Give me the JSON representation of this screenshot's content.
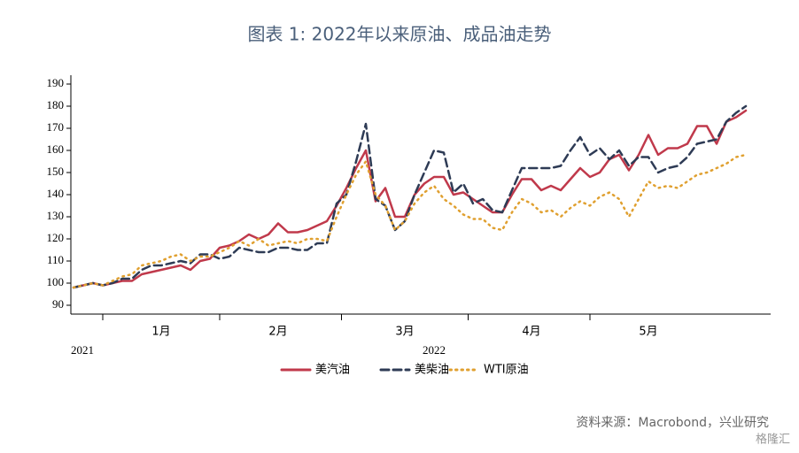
{
  "chart_data": {
    "type": "line",
    "title": "图表 1:     2022年以来原油、成品油走势",
    "source": "资料来源：Macrobond，兴业研究",
    "watermark": "格隆汇",
    "categories": [
      null,
      null,
      null,
      null,
      null,
      null,
      null,
      null,
      null,
      "1月",
      null,
      null,
      null,
      null,
      null,
      null,
      null,
      null,
      null,
      null,
      null,
      "2月",
      null,
      null,
      null,
      null,
      null,
      null,
      null,
      null,
      null,
      null,
      null,
      null,
      "3月",
      null,
      null,
      null,
      null,
      null,
      null,
      null,
      null,
      null,
      null,
      null,
      null,
      "4月",
      null,
      null,
      null,
      null,
      null,
      null,
      null,
      null,
      null,
      null,
      null,
      "5月",
      null,
      null,
      null,
      null,
      null,
      null,
      null,
      null,
      null,
      null
    ],
    "year_categories": [
      "2021",
      null,
      null,
      null,
      null,
      null,
      null,
      null,
      null,
      null,
      null,
      null,
      null,
      null,
      null,
      null,
      null,
      null,
      null,
      null,
      null,
      null,
      null,
      null,
      null,
      null,
      null,
      null,
      null,
      null,
      null,
      null,
      null,
      null,
      null,
      null,
      null,
      "2022",
      null,
      null,
      null,
      null,
      null,
      null,
      null,
      null,
      null,
      null,
      null,
      null,
      null,
      null,
      null,
      null,
      null,
      null,
      null,
      null,
      null,
      null,
      null,
      null,
      null,
      null,
      null,
      null,
      null,
      null,
      null,
      null
    ],
    "ylim": [
      86,
      194
    ],
    "yticks": [
      90,
      100,
      110,
      120,
      130,
      140,
      150,
      160,
      170,
      180,
      190
    ],
    "series": [
      {
        "name": "美汽油",
        "color": "#c0394b",
        "style": "solid",
        "values": [
          98,
          99,
          100,
          99,
          100,
          101,
          101,
          104,
          105,
          106,
          107,
          108,
          106,
          110,
          111,
          116,
          117,
          119,
          122,
          120,
          122,
          127,
          123,
          123,
          124,
          126,
          128,
          135,
          143,
          152,
          160,
          137,
          143,
          130,
          130,
          140,
          145,
          148,
          148,
          140,
          141,
          138,
          135,
          132,
          132,
          140,
          147,
          147,
          142,
          144,
          142,
          147,
          152,
          148,
          150,
          156,
          158,
          151,
          158,
          167,
          158,
          161,
          161,
          163,
          171,
          171,
          163,
          173,
          175,
          178
        ]
      },
      {
        "name": "美柴油",
        "color": "#2e3b55",
        "style": "dashed",
        "values": [
          98,
          99,
          100,
          99,
          100,
          102,
          102,
          106,
          108,
          108,
          109,
          110,
          109,
          113,
          113,
          111,
          112,
          116,
          115,
          114,
          114,
          116,
          116,
          115,
          115,
          118,
          118,
          136,
          140,
          155,
          172,
          138,
          135,
          124,
          128,
          140,
          150,
          160,
          159,
          141,
          145,
          136,
          138,
          133,
          132,
          142,
          152,
          152,
          152,
          152,
          153,
          160,
          166,
          158,
          161,
          156,
          160,
          153,
          157,
          157,
          150,
          152,
          153,
          157,
          163,
          164,
          165,
          173,
          177,
          180
        ]
      },
      {
        "name": "WTI原油",
        "color": "#e0a030",
        "style": "dotted",
        "values": [
          98,
          99,
          100,
          99,
          101,
          103,
          104,
          108,
          109,
          110,
          112,
          113,
          110,
          112,
          112,
          114,
          116,
          119,
          117,
          120,
          117,
          118,
          119,
          118,
          120,
          120,
          119,
          130,
          140,
          149,
          155,
          140,
          135,
          124,
          128,
          136,
          141,
          144,
          138,
          135,
          131,
          129,
          129,
          125,
          124,
          132,
          138,
          136,
          132,
          133,
          130,
          134,
          137,
          135,
          139,
          141,
          138,
          130,
          138,
          146,
          143,
          144,
          143,
          146,
          149,
          150,
          152,
          154,
          157,
          158
        ]
      }
    ]
  }
}
